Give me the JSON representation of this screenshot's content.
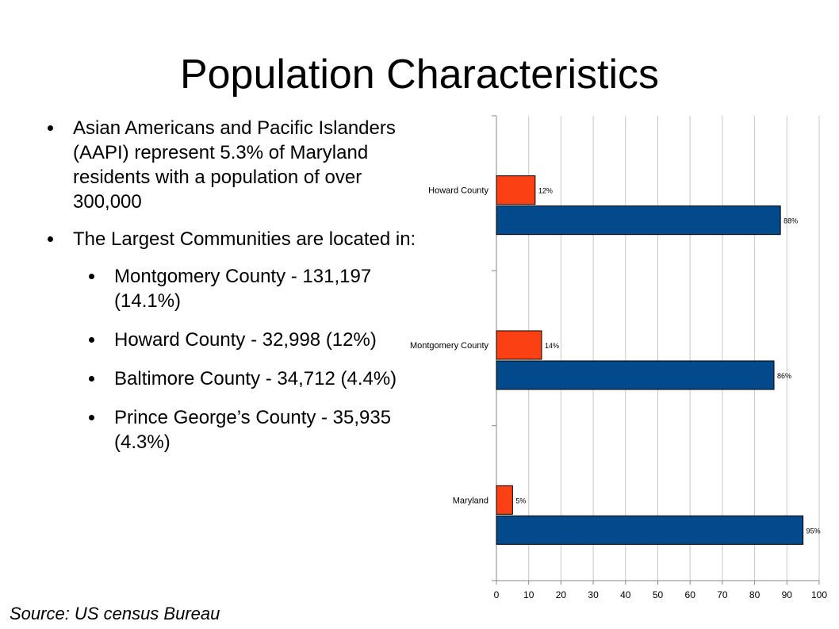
{
  "slide": {
    "title": "Population Characteristics",
    "bullets": [
      {
        "level": 1,
        "text": "Asian Americans and Pacific Islanders (AAPI) represent 5.3% of Maryland residents with a population of over 300,000"
      },
      {
        "level": 1,
        "text": "The Largest Communities are located in:"
      },
      {
        "level": 2,
        "text": "Montgomery County - 131,197 (14.1%)"
      },
      {
        "level": 2,
        "text": "Howard County - 32,998 (12%)"
      },
      {
        "level": 2,
        "text": "Baltimore County - 34,712 (4.4%)"
      },
      {
        "level": 2,
        "text": "Prince George’s County - 35,935 (4.3%)"
      }
    ],
    "source": "Source: US census Bureau"
  },
  "colors": {
    "series_orange": "#fb4114",
    "series_blue": "#034a8c",
    "grid": "#c8c8c8",
    "axis": "#888888"
  },
  "chart_data": {
    "type": "bar",
    "orientation": "horizontal",
    "categories": [
      "Howard County",
      "Montgomery County",
      "Maryland"
    ],
    "series": [
      {
        "values": [
          12,
          14,
          5
        ],
        "labels": [
          "12%",
          "14%",
          "5%"
        ],
        "color": "#fb4114"
      },
      {
        "values": [
          88,
          86,
          95
        ],
        "labels": [
          "88%",
          "86%",
          "95%"
        ],
        "color": "#034a8c"
      }
    ],
    "xlim": [
      0,
      100
    ],
    "xticks": [
      0,
      10,
      20,
      30,
      40,
      50,
      60,
      70,
      80,
      90,
      100
    ],
    "grid": true,
    "legend": "none"
  }
}
